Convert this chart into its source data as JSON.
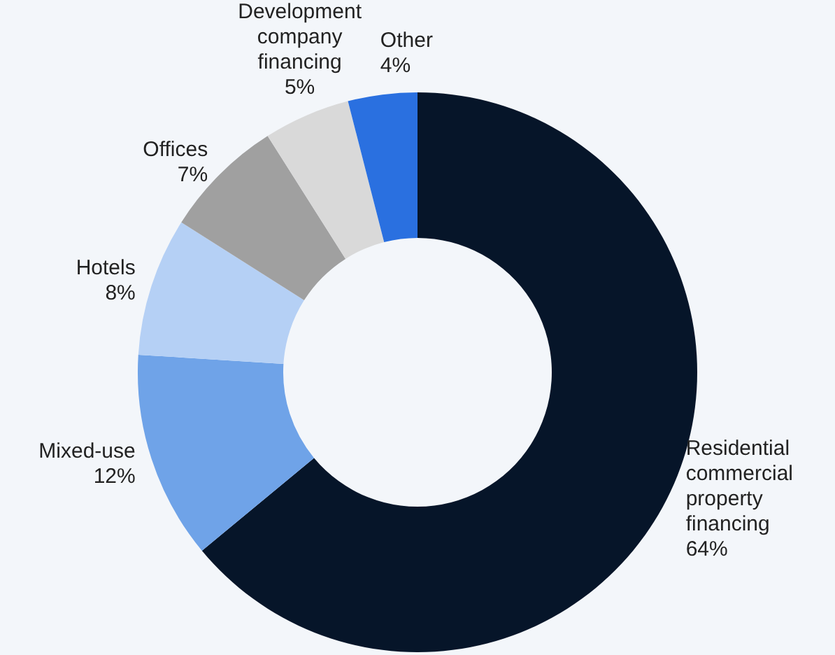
{
  "chart_data": {
    "type": "donut",
    "categories": [
      "Residential commercial property financing",
      "Mixed-use",
      "Hotels",
      "Offices",
      "Development company financing",
      "Other"
    ],
    "values": [
      64,
      12,
      8,
      7,
      5,
      4
    ],
    "colors": [
      "#061529",
      "#6fa3e8",
      "#b5d0f5",
      "#a0a0a0",
      "#d9d9d9",
      "#2a70e0"
    ],
    "value_labels": [
      "64%",
      "12%",
      "8%",
      "7%",
      "5%",
      "4%"
    ],
    "legend": false
  }
}
